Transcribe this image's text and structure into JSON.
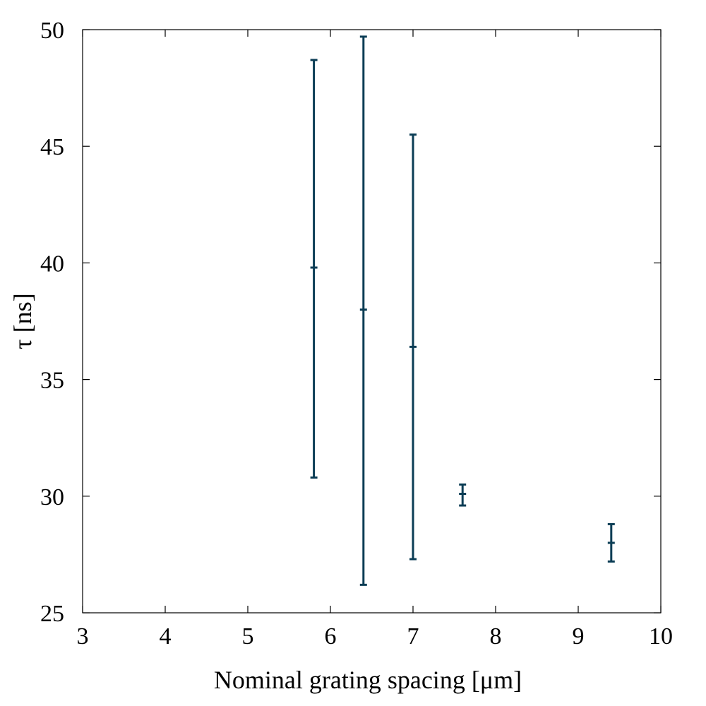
{
  "chart_data": {
    "type": "scatter",
    "title": "",
    "xlabel": "Nominal grating spacing [μm]",
    "ylabel": "τ [ns]",
    "xlim": [
      3,
      10
    ],
    "ylim": [
      25,
      50
    ],
    "xticks": [
      3,
      4,
      5,
      6,
      7,
      8,
      9,
      10
    ],
    "yticks": [
      25,
      30,
      35,
      40,
      45,
      50
    ],
    "grid": false,
    "legend": "none",
    "series": [
      {
        "color": "#0b3d55",
        "points": [
          {
            "x": 5.8,
            "y": 39.8,
            "y_low": 30.8,
            "y_high": 48.7
          },
          {
            "x": 6.4,
            "y": 38.0,
            "y_low": 26.2,
            "y_high": 49.7
          },
          {
            "x": 7.0,
            "y": 36.4,
            "y_low": 27.3,
            "y_high": 45.5
          },
          {
            "x": 7.6,
            "y": 30.1,
            "y_low": 29.6,
            "y_high": 30.5
          },
          {
            "x": 9.4,
            "y": 28.0,
            "y_low": 27.2,
            "y_high": 28.8
          }
        ]
      }
    ]
  }
}
